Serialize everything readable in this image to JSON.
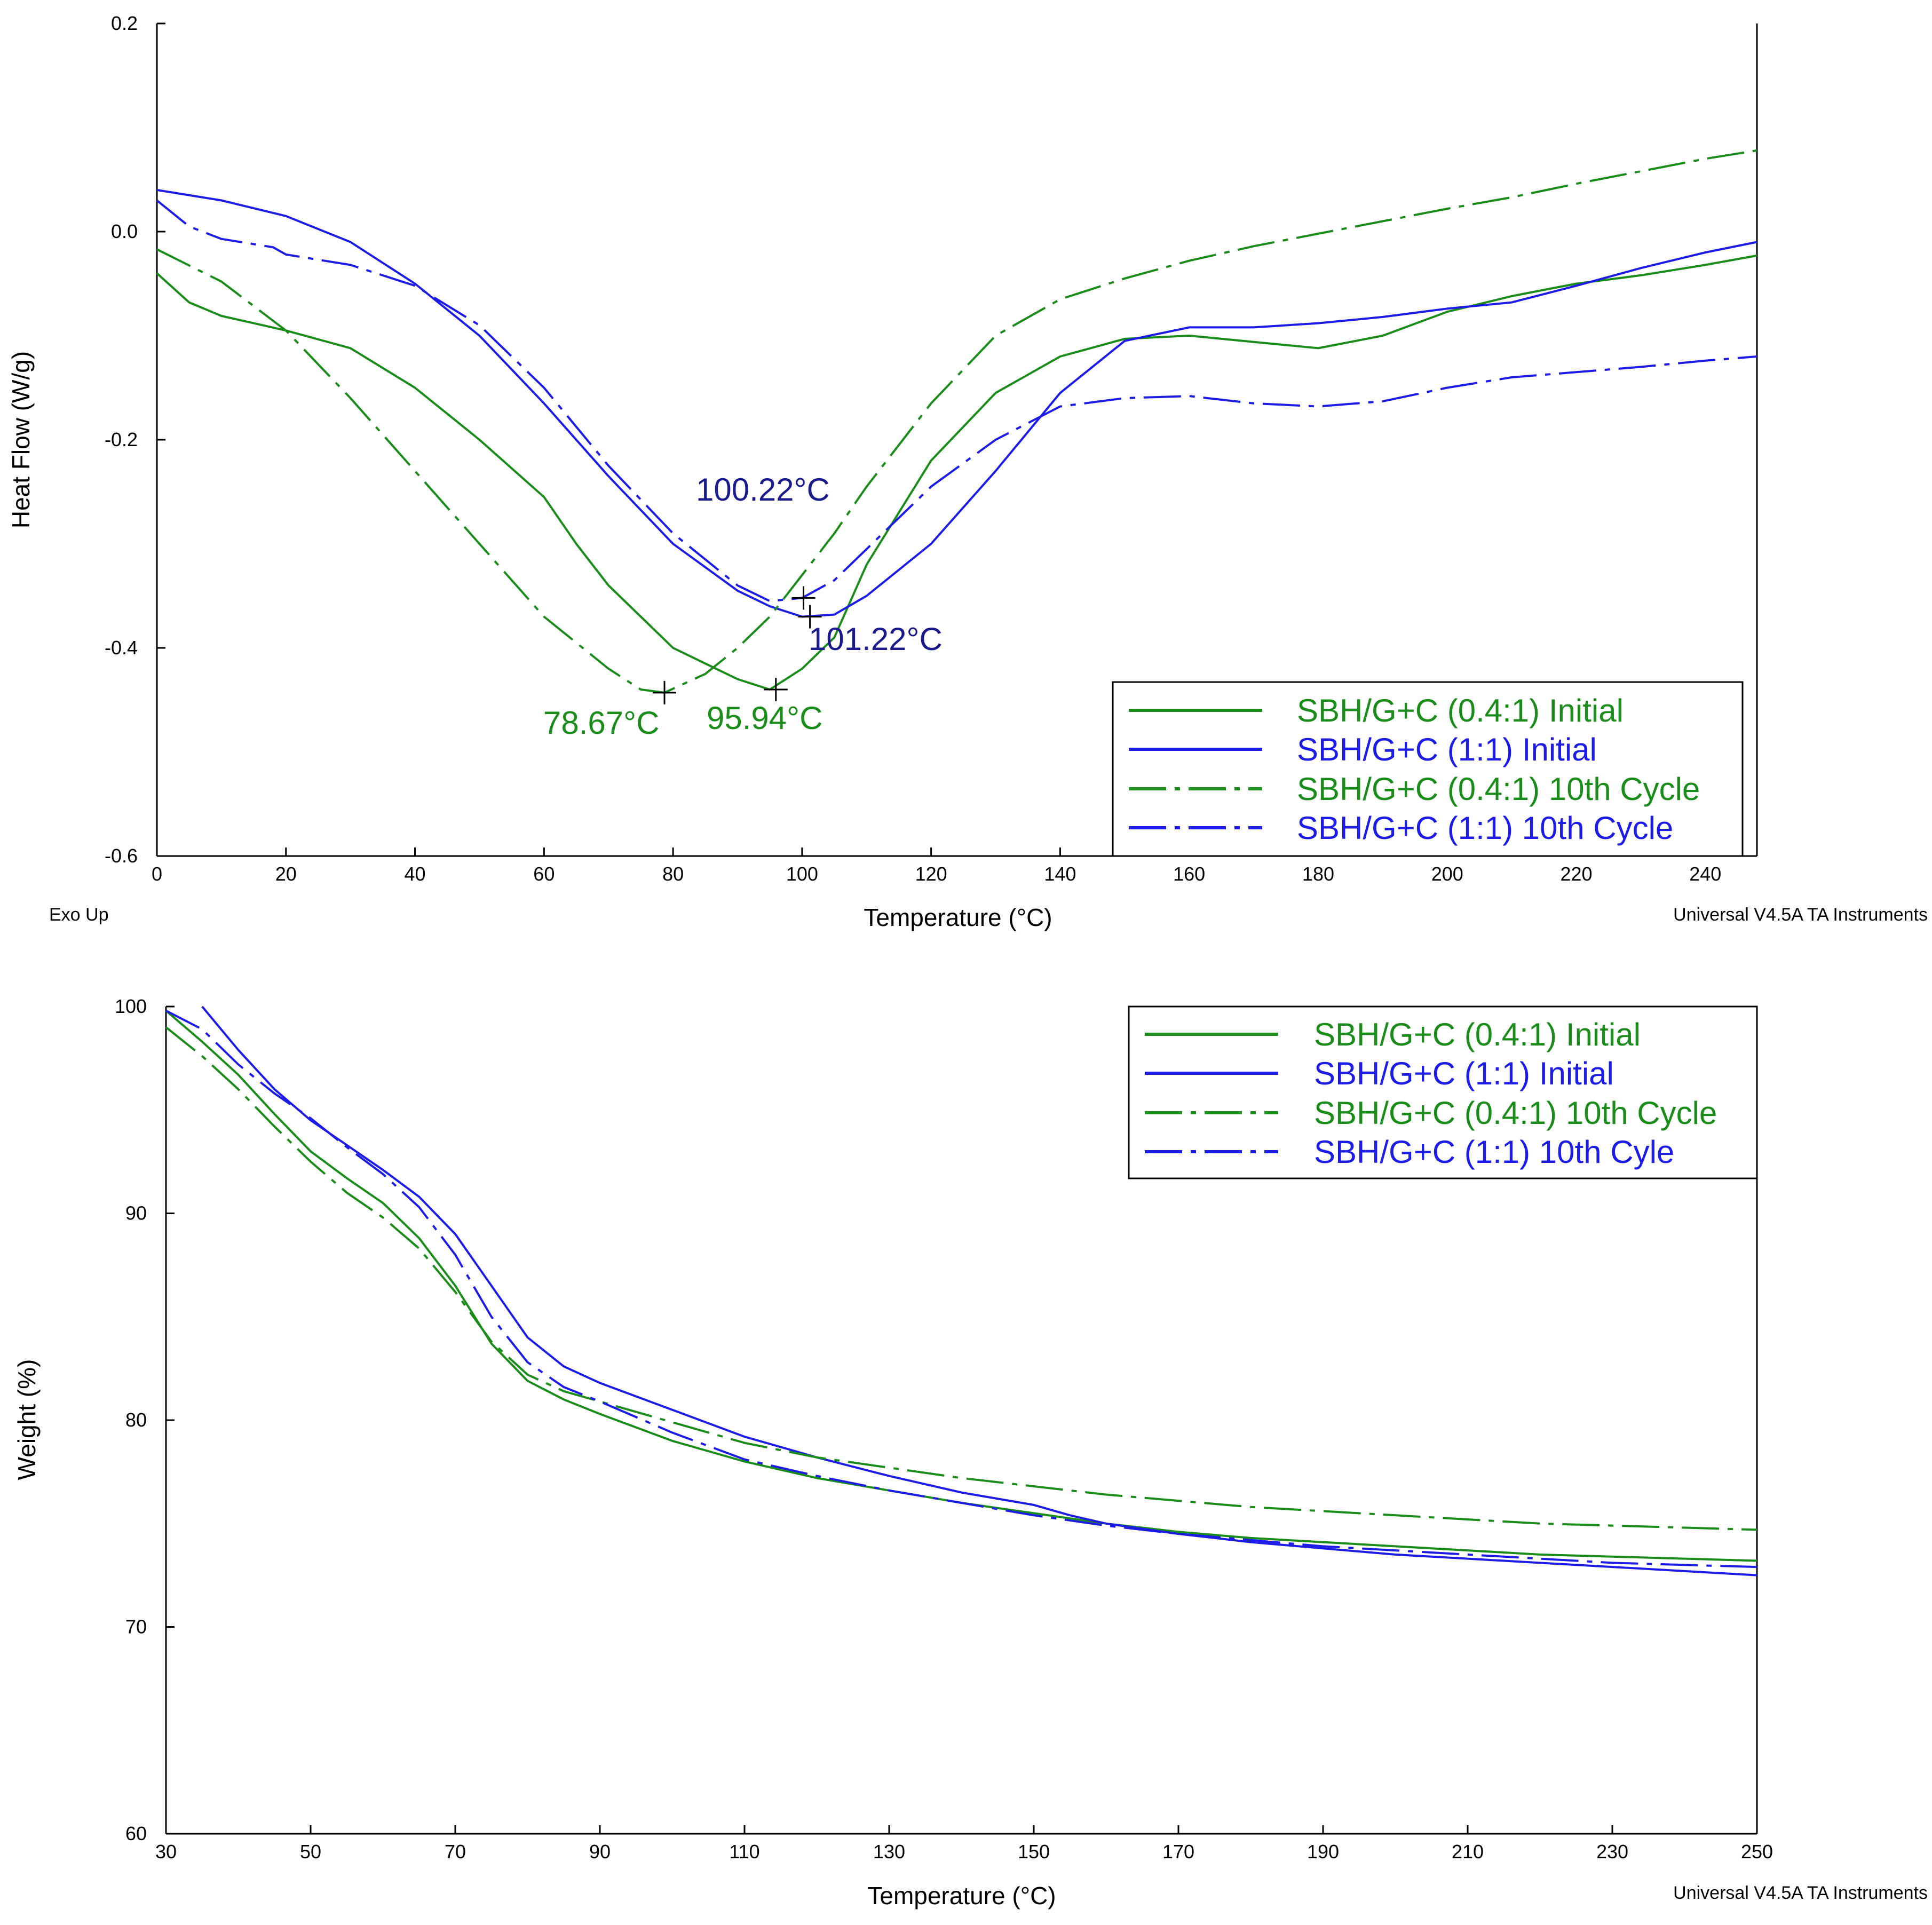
{
  "colors": {
    "green": "#1a8c1a",
    "blue": "#1c1ce6",
    "dark_blue": "#1a1a8c"
  },
  "chart_data": [
    {
      "type": "line",
      "title": "",
      "xlabel": "Temperature (°C)",
      "ylabel": "Heat Flow (W/g)",
      "xlim": [
        0,
        248
      ],
      "ylim": [
        -0.6,
        0.2
      ],
      "xticks": [
        "0",
        "20",
        "40",
        "60",
        "80",
        "100",
        "120",
        "140",
        "160",
        "180",
        "200",
        "220",
        "240"
      ],
      "yticks": [
        "0.2",
        "0.0",
        "-0.2",
        "-0.4",
        "-0.6"
      ],
      "footer_left": "Exo Up",
      "footer_right": "Universal V4.5A TA Instruments",
      "legend": [
        "SBH/G+C (0.4:1) Initial",
        "SBH/G+C (1:1) Initial",
        "SBH/G+C (0.4:1) 10th Cycle",
        "SBH/G+C (1:1) 10th Cycle"
      ],
      "series": [
        {
          "name": "SBH/G+C (0.4:1) Initial",
          "color": "green",
          "dash": "solid",
          "x": [
            0,
            5,
            10,
            15,
            20,
            30,
            40,
            50,
            60,
            65,
            70,
            75,
            80,
            85,
            90,
            95,
            100,
            105,
            110,
            120,
            130,
            140,
            150,
            160,
            170,
            180,
            190,
            200,
            210,
            220,
            230,
            240,
            248
          ],
          "y": [
            -0.04,
            -0.068,
            -0.081,
            -0.088,
            -0.095,
            -0.112,
            -0.15,
            -0.2,
            -0.255,
            -0.3,
            -0.34,
            -0.37,
            -0.4,
            -0.415,
            -0.43,
            -0.44,
            -0.42,
            -0.39,
            -0.32,
            -0.22,
            -0.155,
            -0.12,
            -0.103,
            -0.1,
            -0.106,
            -0.112,
            -0.1,
            -0.077,
            -0.062,
            -0.05,
            -0.042,
            -0.032,
            -0.023
          ]
        },
        {
          "name": "SBH/G+C (1:1) Initial",
          "color": "blue",
          "dash": "solid",
          "x": [
            0,
            10,
            20,
            30,
            40,
            50,
            60,
            70,
            80,
            90,
            95,
            100,
            105,
            110,
            120,
            130,
            140,
            150,
            160,
            170,
            180,
            190,
            200,
            210,
            220,
            230,
            240,
            248
          ],
          "y": [
            0.04,
            0.03,
            0.015,
            -0.01,
            -0.05,
            -0.1,
            -0.165,
            -0.235,
            -0.3,
            -0.345,
            -0.36,
            -0.37,
            -0.368,
            -0.35,
            -0.3,
            -0.23,
            -0.155,
            -0.105,
            -0.092,
            -0.092,
            -0.088,
            -0.082,
            -0.074,
            -0.068,
            -0.052,
            -0.035,
            -0.02,
            -0.01
          ]
        },
        {
          "name": "SBH/G+C (0.4:1) 10th Cycle",
          "color": "green",
          "dash": "dashdot",
          "x": [
            0,
            10,
            20,
            30,
            40,
            50,
            60,
            70,
            75,
            78.67,
            85,
            90,
            95,
            100,
            105,
            110,
            120,
            130,
            140,
            150,
            160,
            170,
            180,
            190,
            200,
            210,
            220,
            230,
            240,
            248
          ],
          "y": [
            -0.017,
            -0.048,
            -0.095,
            -0.16,
            -0.23,
            -0.3,
            -0.37,
            -0.42,
            -0.44,
            -0.443,
            -0.425,
            -0.4,
            -0.37,
            -0.33,
            -0.29,
            -0.245,
            -0.165,
            -0.1,
            -0.065,
            -0.045,
            -0.028,
            -0.014,
            -0.002,
            0.01,
            0.022,
            0.033,
            0.046,
            0.058,
            0.07,
            0.078
          ]
        },
        {
          "name": "SBH/G+C (1:1) 10th Cycle",
          "color": "blue",
          "dash": "dashdot",
          "x": [
            0,
            5,
            10,
            18,
            20,
            30,
            40,
            50,
            60,
            70,
            80,
            90,
            95,
            100,
            105,
            110,
            120,
            130,
            140,
            150,
            160,
            170,
            180,
            190,
            200,
            210,
            220,
            230,
            240,
            248
          ],
          "y": [
            0.03,
            0.005,
            -0.007,
            -0.015,
            -0.022,
            -0.032,
            -0.052,
            -0.09,
            -0.15,
            -0.225,
            -0.29,
            -0.34,
            -0.355,
            -0.352,
            -0.335,
            -0.305,
            -0.245,
            -0.2,
            -0.168,
            -0.16,
            -0.158,
            -0.165,
            -0.168,
            -0.163,
            -0.15,
            -0.14,
            -0.135,
            -0.13,
            -0.124,
            -0.12
          ]
        }
      ],
      "markers": [
        {
          "x": 78.67,
          "y": -0.443,
          "label": "78.67°C",
          "color": "green"
        },
        {
          "x": 95.94,
          "y": -0.44,
          "label": "95.94°C",
          "color": "green"
        },
        {
          "x": 100.22,
          "y": -0.352,
          "label": "100.22°C",
          "color": "dark_blue"
        },
        {
          "x": 101.22,
          "y": -0.37,
          "label": "101.22°C",
          "color": "dark_blue"
        }
      ]
    },
    {
      "type": "line",
      "title": "",
      "xlabel": "Temperature (°C)",
      "ylabel": "Weight (%)",
      "xlim": [
        30,
        250
      ],
      "ylim": [
        60,
        100
      ],
      "xticks": [
        "30",
        "50",
        "70",
        "90",
        "110",
        "130",
        "150",
        "170",
        "190",
        "210",
        "230",
        "250"
      ],
      "yticks": [
        "100",
        "90",
        "80",
        "70",
        "60"
      ],
      "footer_right": "Universal V4.5A TA Instruments",
      "legend": [
        "SBH/G+C (0.4:1) Initial",
        "SBH/G+C (1:1) Initial",
        "SBH/G+C (0.4:1) 10th Cycle",
        "SBH/G+C (1:1) 10th Cyle"
      ],
      "series": [
        {
          "name": "SBH/G+C (0.4:1) Initial",
          "color": "green",
          "dash": "solid",
          "x": [
            30,
            35,
            40,
            45,
            50,
            55,
            60,
            65,
            70,
            75,
            80,
            85,
            90,
            100,
            110,
            120,
            130,
            140,
            150,
            160,
            170,
            180,
            190,
            200,
            210,
            220,
            230,
            240,
            250
          ],
          "y": [
            99.8,
            98.3,
            96.7,
            94.8,
            93.0,
            91.7,
            90.5,
            88.8,
            86.5,
            83.7,
            81.9,
            81.0,
            80.3,
            79.0,
            78.0,
            77.2,
            76.6,
            76.0,
            75.5,
            75.0,
            74.6,
            74.3,
            74.1,
            73.9,
            73.7,
            73.5,
            73.4,
            73.3,
            73.2
          ]
        },
        {
          "name": "SBH/G+C (1:1) Initial",
          "color": "blue",
          "dash": "solid",
          "x": [
            35,
            40,
            45,
            50,
            55,
            60,
            65,
            70,
            75,
            80,
            85,
            90,
            100,
            110,
            120,
            130,
            140,
            150,
            155,
            160,
            170,
            180,
            190,
            200,
            210,
            220,
            230,
            240,
            250
          ],
          "y": [
            100,
            97.9,
            96.0,
            94.5,
            93.3,
            92.1,
            90.8,
            89.0,
            86.5,
            84.0,
            82.6,
            81.8,
            80.5,
            79.2,
            78.2,
            77.3,
            76.5,
            75.9,
            75.4,
            75.0,
            74.5,
            74.1,
            73.8,
            73.5,
            73.3,
            73.1,
            72.9,
            72.7,
            72.5
          ]
        },
        {
          "name": "SBH/G+C (0.4:1) 10th Cycle",
          "color": "green",
          "dash": "dashdot",
          "x": [
            30,
            35,
            40,
            45,
            50,
            55,
            60,
            65,
            70,
            75,
            80,
            85,
            90,
            100,
            110,
            120,
            130,
            140,
            150,
            160,
            170,
            180,
            190,
            200,
            210,
            220,
            230,
            240,
            250
          ],
          "y": [
            99.0,
            97.6,
            96.0,
            94.2,
            92.5,
            91.0,
            89.8,
            88.3,
            86.2,
            83.8,
            82.2,
            81.4,
            80.9,
            79.9,
            78.9,
            78.2,
            77.7,
            77.2,
            76.8,
            76.4,
            76.1,
            75.8,
            75.6,
            75.4,
            75.2,
            75.0,
            74.9,
            74.8,
            74.7
          ]
        },
        {
          "name": "SBH/G+C (1:1) 10th Cyle",
          "color": "blue",
          "dash": "dashdot",
          "x": [
            30,
            35,
            40,
            45,
            50,
            55,
            60,
            65,
            70,
            75,
            80,
            85,
            90,
            100,
            110,
            120,
            130,
            140,
            150,
            160,
            170,
            180,
            190,
            200,
            210,
            220,
            230,
            240,
            250
          ],
          "y": [
            99.8,
            98.9,
            97.2,
            95.8,
            94.6,
            93.2,
            91.9,
            90.3,
            88.0,
            85.0,
            82.8,
            81.6,
            80.9,
            79.4,
            78.1,
            77.3,
            76.6,
            76.0,
            75.4,
            74.9,
            74.5,
            74.2,
            73.9,
            73.7,
            73.5,
            73.3,
            73.1,
            73.0,
            72.9
          ]
        }
      ]
    }
  ]
}
